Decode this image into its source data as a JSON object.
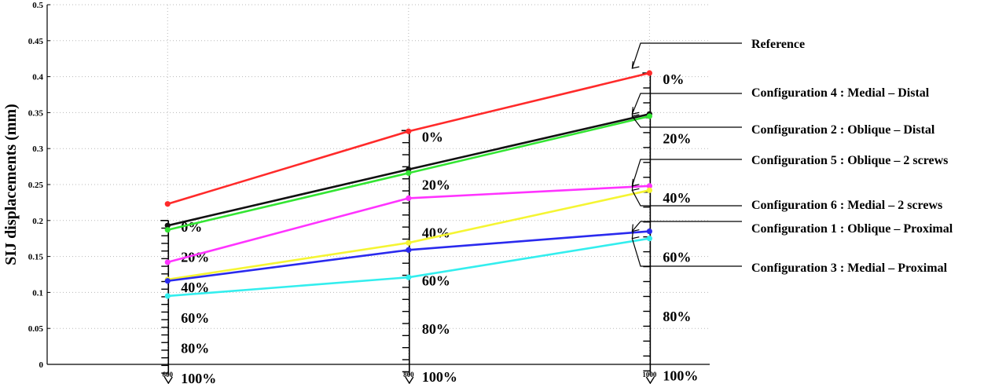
{
  "chart_data": {
    "type": "line",
    "ylabel": "SIJ displacements (mm)",
    "xlabel": "",
    "x": [
      600,
      800,
      1000
    ],
    "x_tick_labels": [
      "600",
      "800",
      "1000"
    ],
    "xlim": [
      500,
      1050
    ],
    "ylim": [
      0,
      0.5
    ],
    "y_ticks": [
      0,
      0.05,
      0.1,
      0.15,
      0.2,
      0.25,
      0.3,
      0.35,
      0.4,
      0.45,
      0.5
    ],
    "y_tick_labels": [
      "0",
      "0.05",
      "0.1",
      "0.15",
      "0.2",
      "0.25",
      "0.3",
      "0.35",
      "0.4",
      "0.45",
      "0.5"
    ],
    "grid": true,
    "series": [
      {
        "name": "Reference",
        "color": "#ff2a2a",
        "values": [
          0.223,
          0.324,
          0.405
        ]
      },
      {
        "name": "Configuration 4 : Medial – Distal",
        "color": "#111111",
        "values": [
          0.193,
          0.271,
          0.348
        ]
      },
      {
        "name": "Configuration 2 : Oblique – Distal",
        "color": "#33e533",
        "values": [
          0.187,
          0.266,
          0.345
        ]
      },
      {
        "name": "Configuration 5 : Oblique – 2 screws",
        "color": "#ff33ff",
        "values": [
          0.142,
          0.231,
          0.248
        ]
      },
      {
        "name": "Configuration 6 : Medial – 2 screws",
        "color": "#f5f533",
        "values": [
          0.118,
          0.169,
          0.242
        ]
      },
      {
        "name": "Configuration 1 : Oblique – Proximal",
        "color": "#2a2aee",
        "values": [
          0.116,
          0.159,
          0.185
        ]
      },
      {
        "name": "Configuration 3 : Medial – Proximal",
        "color": "#33eeee",
        "values": [
          0.095,
          0.121,
          0.175
        ]
      }
    ],
    "scales": [
      {
        "x": 600,
        "top": 0.2,
        "labels": [
          "0%",
          "20%",
          "40%",
          "60%",
          "80%",
          "100%"
        ]
      },
      {
        "x": 800,
        "top": 0.325,
        "labels": [
          "0%",
          "20%",
          "40%",
          "60%",
          "80%",
          "100%"
        ]
      },
      {
        "x": 1000,
        "top": 0.405,
        "labels": [
          "0%",
          "20%",
          "40%",
          "60%",
          "80%",
          "100%"
        ]
      }
    ],
    "legend_placement": "right"
  }
}
